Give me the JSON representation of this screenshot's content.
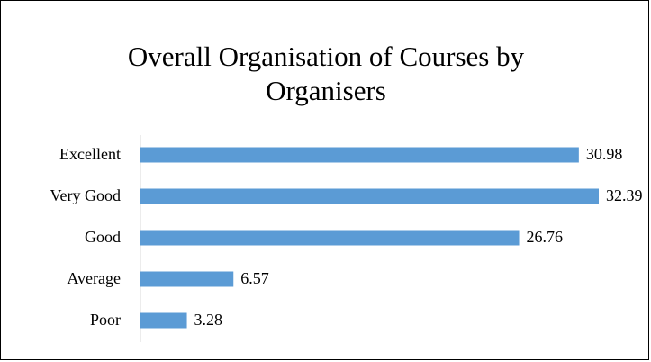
{
  "chart_data": {
    "type": "bar",
    "orientation": "horizontal",
    "title": "Overall Organisation of Courses by Organisers",
    "categories": [
      "Excellent",
      "Very Good",
      "Good",
      "Average",
      "Poor"
    ],
    "values": [
      30.98,
      32.39,
      26.76,
      6.57,
      3.28
    ],
    "color": "#5b9bd5"
  }
}
